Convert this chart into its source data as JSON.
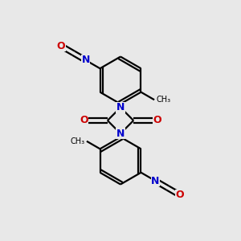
{
  "background_color": "#e8e8e8",
  "bond_color": "#000000",
  "N_color": "#0000cc",
  "O_color": "#cc0000",
  "line_width": 1.6,
  "figsize": [
    3.0,
    3.0
  ],
  "dpi": 100,
  "xlim": [
    0,
    10
  ],
  "ylim": [
    0,
    10
  ]
}
